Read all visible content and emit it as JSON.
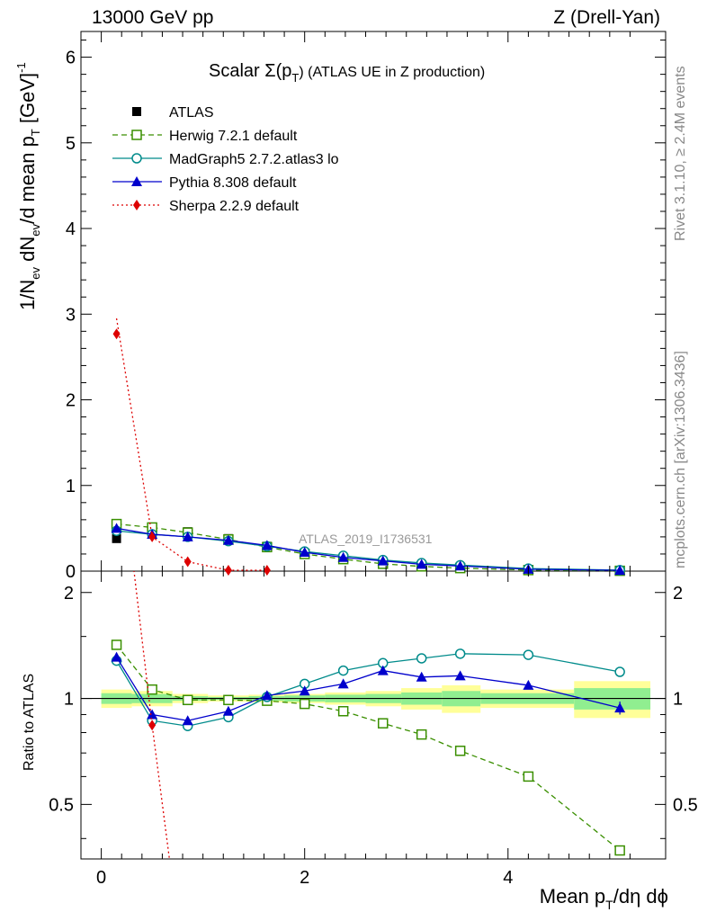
{
  "header": {
    "left": "13000 GeV pp",
    "right": "Z (Drell-Yan)",
    "title_main": "Scalar Σ(p",
    "title_sub": "T",
    "title_tail": ")  (ATLAS UE in Z production)",
    "watermark": "ATLAS_2019_I1736531"
  },
  "side_labels": {
    "rivet": "Rivet 3.1.10, ≥ 2.4M events",
    "mcplots": "mcplots.cern.ch [arXiv:1306.3436]"
  },
  "axes": {
    "ylabel_top": "1/N_ev dN_ev/d mean p_T [GeV]^-1",
    "ylabel_bottom": "Ratio to ATLAS",
    "xlabel": "Mean p_T/dη dϕ"
  },
  "chart_data": [
    {
      "type": "scatter",
      "panel": "main",
      "xlim": [
        -0.2,
        5.55
      ],
      "ylim": [
        0,
        6.3
      ],
      "x_ticks": [
        0,
        2,
        4
      ],
      "y_ticks": [
        0,
        1,
        2,
        3,
        4,
        5,
        6
      ],
      "legend_position": "top-left",
      "series": [
        {
          "name": "ATLAS",
          "color": "#000000",
          "marker": "square-filled",
          "line": "none",
          "x": [
            0.15,
            0.5,
            0.85,
            1.25,
            1.63,
            2.0,
            2.38,
            2.77,
            3.15,
            3.53,
            4.2,
            5.1
          ],
          "y": [
            0.38,
            0.49,
            0.46,
            0.38,
            0.29,
            0.21,
            0.15,
            0.1,
            0.07,
            0.05,
            0.02,
            0.01
          ]
        },
        {
          "name": "Herwig 7.2.1 default",
          "color": "#3a8f00",
          "marker": "square-open",
          "line": "dashed",
          "x": [
            0.15,
            0.5,
            0.85,
            1.25,
            1.63,
            2.0,
            2.38,
            2.77,
            3.15,
            3.53,
            4.2,
            5.1
          ],
          "y": [
            0.55,
            0.51,
            0.45,
            0.37,
            0.28,
            0.2,
            0.14,
            0.085,
            0.055,
            0.035,
            0.012,
            0.004
          ]
        },
        {
          "name": "MadGraph5 2.7.2.atlas3 lo",
          "color": "#008b8b",
          "marker": "circle-open",
          "line": "solid",
          "x": [
            0.15,
            0.5,
            0.85,
            1.25,
            1.63,
            2.0,
            2.38,
            2.77,
            3.15,
            3.53,
            4.2,
            5.1
          ],
          "y": [
            0.47,
            0.43,
            0.4,
            0.35,
            0.29,
            0.23,
            0.18,
            0.13,
            0.095,
            0.07,
            0.03,
            0.012
          ]
        },
        {
          "name": "Pythia 8.308 default",
          "color": "#0000cc",
          "marker": "triangle-filled",
          "line": "solid",
          "x": [
            0.15,
            0.5,
            0.85,
            1.25,
            1.63,
            2.0,
            2.38,
            2.77,
            3.15,
            3.53,
            4.2,
            5.1
          ],
          "y": [
            0.5,
            0.43,
            0.4,
            0.36,
            0.3,
            0.22,
            0.16,
            0.12,
            0.08,
            0.06,
            0.022,
            0.009
          ]
        },
        {
          "name": "Sherpa 2.2.9 default",
          "color": "#dd0000",
          "marker": "diamond-filled",
          "line": "dotted",
          "x": [
            0.15,
            0.5,
            0.85,
            1.25,
            1.63
          ],
          "y": [
            2.77,
            0.4,
            0.11,
            0.01,
            0.01
          ],
          "line_x": [
            0.15,
            0.5,
            0.85,
            1.25,
            1.63
          ],
          "line_y": [
            2.95,
            0.4,
            0.11,
            0.01,
            0.01
          ]
        }
      ]
    },
    {
      "type": "line",
      "panel": "ratio",
      "xlim": [
        -0.2,
        5.55
      ],
      "ylim": [
        0.35,
        2.3
      ],
      "x_ticks": [
        0,
        2,
        4
      ],
      "x_tick_labels": [
        "0",
        "2",
        "4"
      ],
      "y_ticks": [
        0.5,
        1,
        2
      ],
      "y_tick_labels": [
        "0.5",
        "1",
        "2"
      ],
      "log_y": true,
      "bands": {
        "edges": [
          0,
          0.3,
          0.7,
          1.05,
          1.45,
          1.8,
          2.2,
          2.6,
          2.95,
          3.35,
          3.73,
          4.65,
          5.4
        ],
        "outer": [
          0.06,
          0.05,
          0.03,
          0.02,
          0.025,
          0.03,
          0.04,
          0.05,
          0.07,
          0.09,
          0.06,
          0.12
        ],
        "inner": [
          0.035,
          0.03,
          0.015,
          0.01,
          0.015,
          0.02,
          0.025,
          0.03,
          0.04,
          0.05,
          0.035,
          0.07
        ]
      },
      "series": [
        {
          "name": "Herwig 7.2.1 default",
          "color": "#3a8f00",
          "marker": "square-open",
          "line": "dashed",
          "x": [
            0.15,
            0.5,
            0.85,
            1.25,
            1.63,
            2.0,
            2.38,
            2.77,
            3.15,
            3.53,
            4.2,
            5.1
          ],
          "y": [
            1.42,
            1.06,
            0.99,
            0.99,
            0.985,
            0.965,
            0.92,
            0.85,
            0.79,
            0.71,
            0.6,
            0.37
          ]
        },
        {
          "name": "MadGraph5 2.7.2.atlas3 lo",
          "color": "#008b8b",
          "marker": "circle-open",
          "line": "solid",
          "x": [
            0.15,
            0.5,
            0.85,
            1.25,
            1.63,
            2.0,
            2.38,
            2.77,
            3.15,
            3.53,
            4.2,
            5.1
          ],
          "y": [
            1.28,
            0.865,
            0.835,
            0.885,
            1.01,
            1.1,
            1.2,
            1.26,
            1.3,
            1.34,
            1.33,
            1.19
          ]
        },
        {
          "name": "Pythia 8.308 default",
          "color": "#0000cc",
          "marker": "triangle-filled",
          "line": "solid",
          "x": [
            0.15,
            0.5,
            0.85,
            1.25,
            1.63,
            2.0,
            2.38,
            2.77,
            3.15,
            3.53,
            4.2,
            5.1
          ],
          "y": [
            1.31,
            0.9,
            0.865,
            0.92,
            1.02,
            1.05,
            1.1,
            1.2,
            1.15,
            1.16,
            1.09,
            0.94
          ],
          "yerr": [
            0,
            0,
            0,
            0,
            0,
            0,
            0,
            0.02,
            0.02,
            0.03,
            0.02,
            0.04
          ]
        },
        {
          "name": "Sherpa 2.2.9 default",
          "color": "#dd0000",
          "marker": "diamond-filled",
          "line": "dotted",
          "x": [
            0.5
          ],
          "y": [
            0.84
          ],
          "line_x": [
            0.3,
            0.5,
            0.7
          ],
          "line_y": [
            2.6,
            0.84,
            0.3
          ]
        }
      ]
    }
  ]
}
